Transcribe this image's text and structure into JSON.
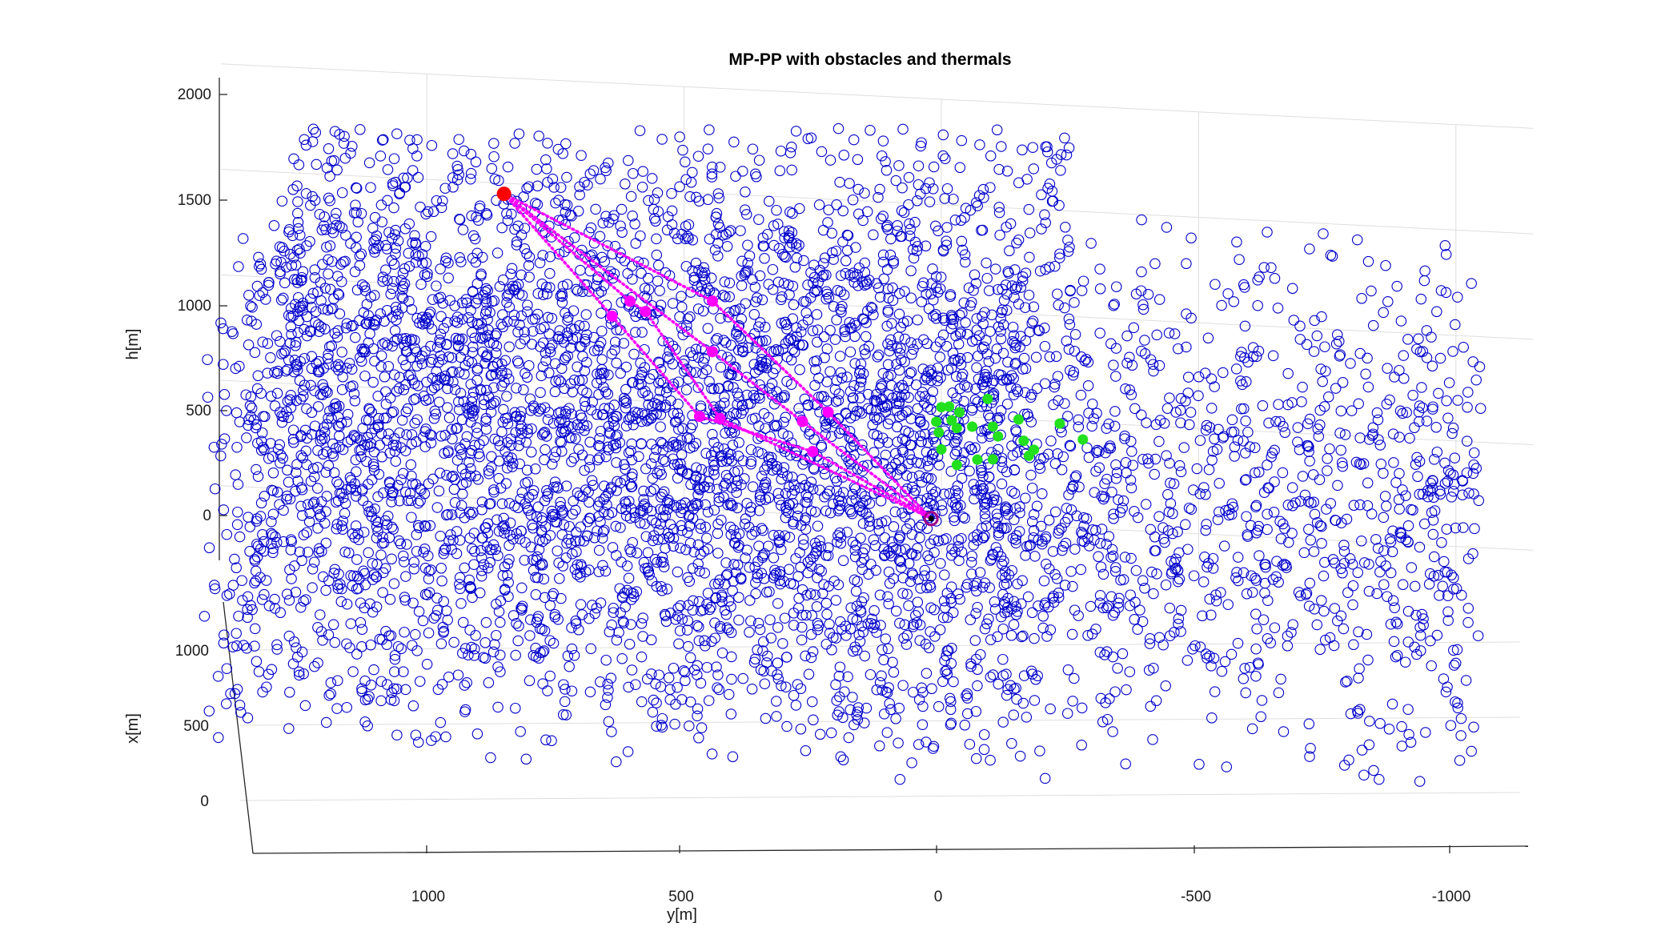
{
  "chart_data": {
    "type": "scatter",
    "projection": "3d",
    "title": "MP-PP with obstacles and thermals",
    "axes": {
      "h": {
        "label": "h[m]",
        "ticks": [
          0,
          500,
          1000,
          1500,
          2000
        ],
        "lim": [
          -150,
          2000
        ]
      },
      "x": {
        "label": "x[m]",
        "ticks": [
          0,
          500,
          1000
        ],
        "lim": [
          0,
          1000
        ]
      },
      "y": {
        "label": "y[m]",
        "ticks": [
          1000,
          500,
          0,
          -500,
          -1000
        ],
        "lim": [
          1400,
          -1150
        ],
        "reversed": true
      }
    },
    "grid": true,
    "colors": {
      "obstacles": "#0000cc",
      "thermals": "#22e01e",
      "paths": "#ff00ff",
      "start": "#ff0000",
      "goal": "#a0008a"
    },
    "obstacles": {
      "marker": "open-circle",
      "approx_count": 5500,
      "dense_region": {
        "y": [
          1350,
          -200
        ],
        "h": [
          -150,
          1850
        ]
      },
      "sparse_region": {
        "y": [
          -200,
          -1100
        ],
        "h": [
          -150,
          1400
        ]
      }
    },
    "start": {
      "y": 850,
      "h": 1450
    },
    "goal": {
      "y": 20,
      "h": 10
    },
    "thermals": [
      {
        "y": -90,
        "h": 590
      },
      {
        "y": -35,
        "h": 520
      },
      {
        "y": -15,
        "h": 545
      },
      {
        "y": 0,
        "h": 540
      },
      {
        "y": -150,
        "h": 500
      },
      {
        "y": -100,
        "h": 460
      },
      {
        "y": -20,
        "h": 480
      },
      {
        "y": 10,
        "h": 470
      },
      {
        "y": -60,
        "h": 455
      },
      {
        "y": -30,
        "h": 445
      },
      {
        "y": 5,
        "h": 420
      },
      {
        "y": -110,
        "h": 415
      },
      {
        "y": -160,
        "h": 400
      },
      {
        "y": -230,
        "h": 490
      },
      {
        "y": -275,
        "h": 420
      },
      {
        "y": -180,
        "h": 360
      },
      {
        "y": -170,
        "h": 330
      },
      {
        "y": -100,
        "h": 305
      },
      {
        "y": -70,
        "h": 300
      },
      {
        "y": -30,
        "h": 270
      },
      {
        "y": 0,
        "h": 340
      }
    ],
    "paths": [
      {
        "waypoints": [
          {
            "y": 850,
            "h": 1450
          },
          {
            "y": 605,
            "h": 970
          },
          {
            "y": 575,
            "h": 925
          },
          {
            "y": 430,
            "h": 435
          },
          {
            "y": 20,
            "h": 10
          }
        ]
      },
      {
        "waypoints": [
          {
            "y": 850,
            "h": 1450
          },
          {
            "y": 640,
            "h": 895
          },
          {
            "y": 470,
            "h": 440
          },
          {
            "y": 250,
            "h": 300
          },
          {
            "y": 20,
            "h": 10
          }
        ]
      },
      {
        "waypoints": [
          {
            "y": 850,
            "h": 1450
          },
          {
            "y": 445,
            "h": 990
          },
          {
            "y": 220,
            "h": 490
          },
          {
            "y": 20,
            "h": 10
          }
        ]
      },
      {
        "waypoints": [
          {
            "y": 850,
            "h": 1450
          },
          {
            "y": 445,
            "h": 750
          },
          {
            "y": 270,
            "h": 440
          },
          {
            "y": 20,
            "h": 10
          }
        ]
      }
    ]
  }
}
